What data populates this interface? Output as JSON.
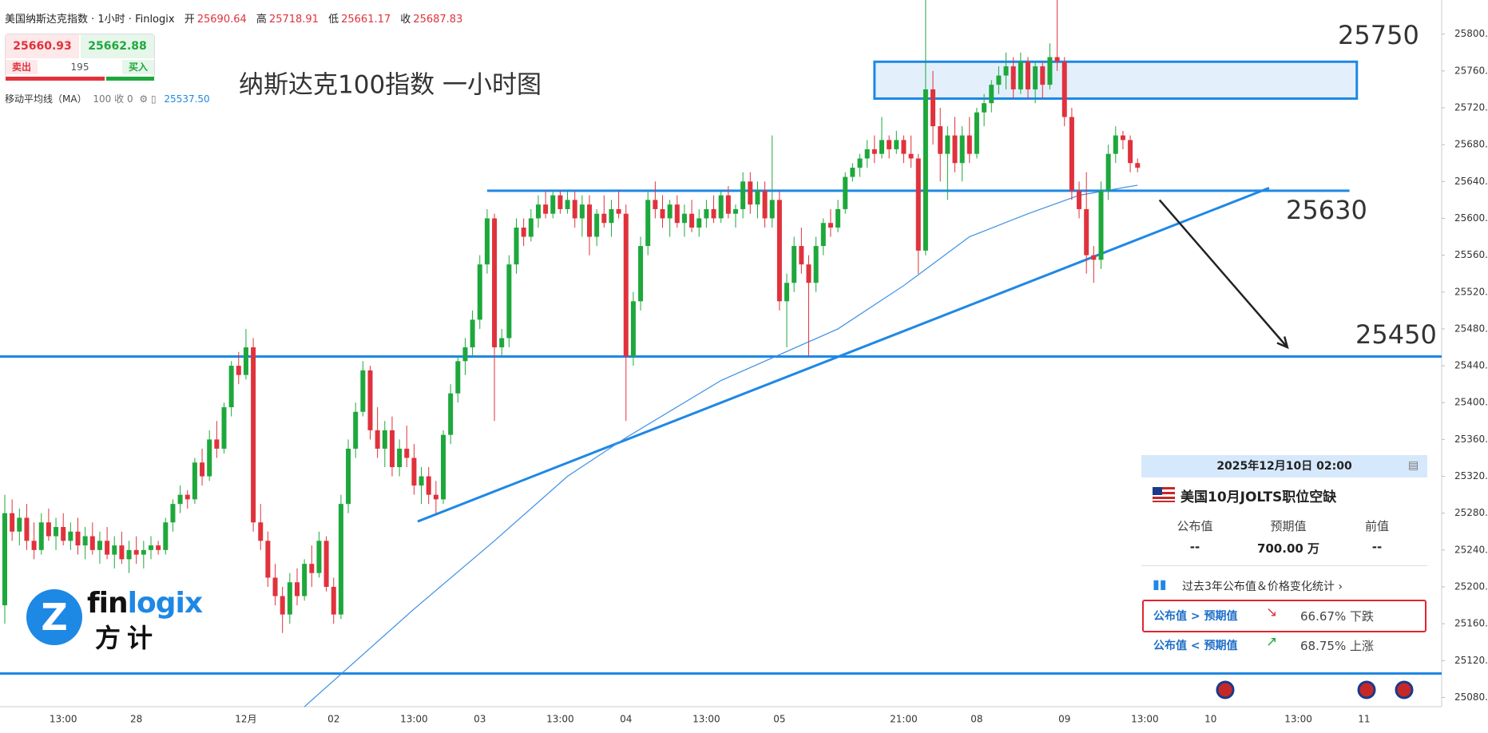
{
  "header": {
    "symbol": "美国纳斯达克指数 · 1小时 · Finlogix",
    "ohlc": [
      {
        "label": "开",
        "value": "25690.64"
      },
      {
        "label": "高",
        "value": "25718.91"
      },
      {
        "label": "低",
        "value": "25661.17"
      },
      {
        "label": "收",
        "value": "25687.83"
      }
    ]
  },
  "quote": {
    "sell": "25660.93",
    "sell_label": "卖出",
    "buy": "25662.88",
    "buy_label": "买入",
    "spread": "195"
  },
  "indicator": {
    "name": "移动平均线（MA）",
    "params": "100 收 0",
    "value": "25537.50"
  },
  "logo": {
    "brand": [
      "fin",
      "logix"
    ],
    "brand_cn": "方计"
  },
  "event": {
    "datetime": "2025年12月10日 02:00",
    "title": "美国10月JOLTS职位空缺",
    "columns": [
      "公布值",
      "预期值",
      "前值"
    ],
    "values": [
      "--",
      "700.00 万",
      "--"
    ],
    "history_link": "过去3年公布值＆价格变化统计",
    "rows": [
      {
        "condition": "公布值 > 预期值",
        "result": "66.67% 下跌"
      },
      {
        "condition": "公布值 < 预期值",
        "result": "68.75% 上涨"
      }
    ]
  },
  "chart_data": {
    "type": "candlestick",
    "title": "纳斯达克100指数 一小时图",
    "up_color": "#1ea83c",
    "down_color": "#e0323c",
    "categories": [
      null,
      null,
      null,
      null,
      null,
      null,
      null,
      null,
      "13:00",
      null,
      null,
      null,
      null,
      null,
      null,
      null,
      null,
      null,
      "28",
      null,
      null,
      null,
      null,
      null,
      null,
      null,
      null,
      null,
      null,
      null,
      null,
      null,
      null,
      "12月",
      null,
      null,
      null,
      null,
      null,
      null,
      null,
      null,
      null,
      null,
      null,
      "02",
      null,
      null,
      null,
      null,
      null,
      null,
      null,
      null,
      null,
      null,
      "13:00",
      null,
      null,
      null,
      null,
      null,
      null,
      null,
      null,
      "03",
      null,
      null,
      null,
      null,
      null,
      null,
      null,
      null,
      null,
      null,
      "13:00",
      null,
      null,
      null,
      null,
      null,
      null,
      null,
      null,
      "04",
      null,
      null,
      null,
      null,
      null,
      null,
      null,
      null,
      null,
      null,
      "13:00",
      null,
      null,
      null,
      null,
      null,
      null,
      null,
      null,
      null,
      "05",
      null,
      null,
      null,
      null,
      null,
      null,
      null,
      null,
      null,
      null,
      null,
      null,
      null,
      null,
      null,
      null,
      "21:00",
      null,
      null,
      null,
      null,
      null,
      null,
      null,
      null,
      null,
      "08",
      null,
      null,
      null,
      null,
      null,
      null,
      null,
      null,
      null,
      null,
      null,
      "09",
      null,
      null,
      null,
      null,
      null,
      null,
      null,
      null,
      null,
      null,
      "13:00",
      null,
      null,
      null,
      null,
      null,
      null,
      null,
      null,
      "10",
      null,
      null,
      null,
      null,
      null,
      null,
      null,
      null,
      null,
      null,
      null,
      "13:00",
      null,
      null,
      null,
      null,
      null,
      null,
      null,
      null,
      "11"
    ],
    "values": [
      [
        25180,
        25300,
        25160,
        25280
      ],
      [
        25280,
        25295,
        25250,
        25260
      ],
      [
        25260,
        25285,
        25245,
        25275
      ],
      [
        25275,
        25290,
        25240,
        25250
      ],
      [
        25250,
        25270,
        25230,
        25240
      ],
      [
        25240,
        25280,
        25235,
        25270
      ],
      [
        25270,
        25285,
        25250,
        25255
      ],
      [
        25255,
        25275,
        25240,
        25265
      ],
      [
        25265,
        25280,
        25245,
        25250
      ],
      [
        25250,
        25270,
        25240,
        25260
      ],
      [
        25260,
        25275,
        25235,
        25245
      ],
      [
        25245,
        25265,
        25230,
        25255
      ],
      [
        25255,
        25270,
        25235,
        25240
      ],
      [
        25240,
        25260,
        25225,
        25250
      ],
      [
        25250,
        25265,
        25230,
        25235
      ],
      [
        25235,
        25255,
        25220,
        25245
      ],
      [
        25245,
        25260,
        25225,
        25230
      ],
      [
        25230,
        25250,
        25215,
        25240
      ],
      [
        25240,
        25255,
        25225,
        25235
      ],
      [
        25235,
        25250,
        25220,
        25240
      ],
      [
        25240,
        25255,
        25230,
        25245
      ],
      [
        25245,
        25250,
        25235,
        25240
      ],
      [
        25240,
        25275,
        25235,
        25270
      ],
      [
        25270,
        25295,
        25260,
        25290
      ],
      [
        25290,
        25310,
        25280,
        25300
      ],
      [
        25300,
        25305,
        25285,
        25295
      ],
      [
        25295,
        25340,
        25290,
        25335
      ],
      [
        25335,
        25350,
        25310,
        25320
      ],
      [
        25320,
        25370,
        25315,
        25360
      ],
      [
        25360,
        25380,
        25340,
        25350
      ],
      [
        25350,
        25400,
        25345,
        25395
      ],
      [
        25395,
        25445,
        25385,
        25440
      ],
      [
        25440,
        25455,
        25420,
        25430
      ],
      [
        25430,
        25480,
        25425,
        25460
      ],
      [
        25460,
        25470,
        25260,
        25270
      ],
      [
        25270,
        25290,
        25240,
        25250
      ],
      [
        25250,
        25260,
        25200,
        25210
      ],
      [
        25210,
        25225,
        25180,
        25190
      ],
      [
        25190,
        25200,
        25150,
        25170
      ],
      [
        25170,
        25215,
        25160,
        25205
      ],
      [
        25205,
        25220,
        25180,
        25190
      ],
      [
        25190,
        25230,
        25185,
        25225
      ],
      [
        25225,
        25245,
        25200,
        25215
      ],
      [
        25215,
        25260,
        25210,
        25250
      ],
      [
        25250,
        25255,
        25195,
        25200
      ],
      [
        25200,
        25210,
        25160,
        25170
      ],
      [
        25170,
        25300,
        25165,
        25290
      ],
      [
        25290,
        25360,
        25280,
        25350
      ],
      [
        25350,
        25400,
        25340,
        25390
      ],
      [
        25390,
        25445,
        25385,
        25435
      ],
      [
        25435,
        25440,
        25360,
        25370
      ],
      [
        25370,
        25395,
        25340,
        25350
      ],
      [
        25350,
        25380,
        25330,
        25370
      ],
      [
        25370,
        25385,
        25320,
        25330
      ],
      [
        25330,
        25360,
        25320,
        25350
      ],
      [
        25350,
        25375,
        25330,
        25340
      ],
      [
        25340,
        25355,
        25300,
        25310
      ],
      [
        25310,
        25330,
        25290,
        25320
      ],
      [
        25320,
        25330,
        25290,
        25300
      ],
      [
        25300,
        25315,
        25280,
        25295
      ],
      [
        25295,
        25370,
        25290,
        25365
      ],
      [
        25365,
        25420,
        25355,
        25410
      ],
      [
        25410,
        25450,
        25400,
        25445
      ],
      [
        25445,
        25470,
        25430,
        25460
      ],
      [
        25460,
        25500,
        25450,
        25490
      ],
      [
        25490,
        25560,
        25480,
        25550
      ],
      [
        25550,
        25610,
        25540,
        25600
      ],
      [
        25600,
        25605,
        25380,
        25460
      ],
      [
        25460,
        25480,
        25450,
        25470
      ],
      [
        25470,
        25560,
        25460,
        25550
      ],
      [
        25550,
        25600,
        25540,
        25590
      ],
      [
        25590,
        25600,
        25570,
        25580
      ],
      [
        25580,
        25610,
        25575,
        25600
      ],
      [
        25600,
        25625,
        25590,
        25615
      ],
      [
        25615,
        25630,
        25600,
        25605
      ],
      [
        25605,
        25630,
        25600,
        25625
      ],
      [
        25625,
        25630,
        25605,
        25610
      ],
      [
        25610,
        25630,
        25605,
        25620
      ],
      [
        25620,
        25630,
        25590,
        25600
      ],
      [
        25600,
        25625,
        25580,
        25615
      ],
      [
        25615,
        25625,
        25560,
        25580
      ],
      [
        25580,
        25610,
        25570,
        25605
      ],
      [
        25605,
        25625,
        25590,
        25595
      ],
      [
        25595,
        25620,
        25580,
        25610
      ],
      [
        25610,
        25630,
        25600,
        25605
      ],
      [
        25605,
        25615,
        25380,
        25450
      ],
      [
        25450,
        25520,
        25440,
        25510
      ],
      [
        25510,
        25580,
        25500,
        25570
      ],
      [
        25570,
        25630,
        25560,
        25620
      ],
      [
        25620,
        25640,
        25600,
        25610
      ],
      [
        25610,
        25625,
        25590,
        25600
      ],
      [
        25600,
        25620,
        25580,
        25615
      ],
      [
        25615,
        25625,
        25590,
        25595
      ],
      [
        25595,
        25615,
        25580,
        25605
      ],
      [
        25605,
        25620,
        25585,
        25590
      ],
      [
        25590,
        25610,
        25580,
        25600
      ],
      [
        25600,
        25620,
        25590,
        25610
      ],
      [
        25610,
        25625,
        25595,
        25600
      ],
      [
        25600,
        25630,
        25595,
        25625
      ],
      [
        25625,
        25635,
        25600,
        25605
      ],
      [
        25605,
        25615,
        25590,
        25610
      ],
      [
        25610,
        25650,
        25600,
        25640
      ],
      [
        25640,
        25650,
        25605,
        25615
      ],
      [
        25615,
        25640,
        25600,
        25630
      ],
      [
        25630,
        25640,
        25590,
        25600
      ],
      [
        25600,
        25690,
        25590,
        25620
      ],
      [
        25620,
        25630,
        25500,
        25510
      ],
      [
        25510,
        25540,
        25460,
        25530
      ],
      [
        25530,
        25580,
        25520,
        25570
      ],
      [
        25570,
        25590,
        25540,
        25550
      ],
      [
        25550,
        25560,
        25450,
        25530
      ],
      [
        25530,
        25580,
        25520,
        25570
      ],
      [
        25570,
        25600,
        25560,
        25595
      ],
      [
        25595,
        25610,
        25580,
        25590
      ],
      [
        25590,
        25620,
        25585,
        25610
      ],
      [
        25610,
        25650,
        25605,
        25645
      ],
      [
        25645,
        25660,
        25640,
        25655
      ],
      [
        25655,
        25670,
        25645,
        25665
      ],
      [
        25665,
        25685,
        25655,
        25675
      ],
      [
        25675,
        25690,
        25660,
        25670
      ],
      [
        25670,
        25710,
        25665,
        25685
      ],
      [
        25685,
        25690,
        25665,
        25675
      ],
      [
        25675,
        25695,
        25670,
        25685
      ],
      [
        25685,
        25690,
        25660,
        25670
      ],
      [
        25670,
        25690,
        25655,
        25665
      ],
      [
        25665,
        25670,
        25540,
        25565
      ],
      [
        25565,
        25840,
        25560,
        25740
      ],
      [
        25740,
        25760,
        25680,
        25700
      ],
      [
        25700,
        25720,
        25640,
        25670
      ],
      [
        25670,
        25700,
        25620,
        25690
      ],
      [
        25690,
        25710,
        25650,
        25660
      ],
      [
        25660,
        25700,
        25640,
        25690
      ],
      [
        25690,
        25710,
        25660,
        25670
      ],
      [
        25670,
        25720,
        25665,
        25715
      ],
      [
        25715,
        25735,
        25700,
        25725
      ],
      [
        25725,
        25750,
        25715,
        25745
      ],
      [
        25745,
        25765,
        25735,
        25755
      ],
      [
        25755,
        25780,
        25740,
        25765
      ],
      [
        25765,
        25775,
        25730,
        25740
      ],
      [
        25740,
        25780,
        25735,
        25770
      ],
      [
        25770,
        25775,
        25730,
        25740
      ],
      [
        25740,
        25770,
        25725,
        25765
      ],
      [
        25765,
        25770,
        25730,
        25745
      ],
      [
        25745,
        25790,
        25740,
        25775
      ],
      [
        25775,
        25840,
        25760,
        25770
      ],
      [
        25770,
        25775,
        25700,
        25710
      ],
      [
        25710,
        25720,
        25620,
        25630
      ],
      [
        25630,
        25640,
        25600,
        25610
      ],
      [
        25610,
        25650,
        25540,
        25560
      ],
      [
        25560,
        25570,
        25530,
        25555
      ],
      [
        25555,
        25640,
        25545,
        25630
      ],
      [
        25630,
        25680,
        25620,
        25670
      ],
      [
        25670,
        25700,
        25660,
        25690
      ],
      [
        25690,
        25695,
        25675,
        25685
      ],
      [
        25685,
        25690,
        25650,
        25660
      ],
      [
        25660,
        25665,
        25650,
        25655
      ],
      null,
      null,
      null,
      null,
      null,
      null,
      null,
      null,
      null,
      null,
      null,
      null,
      null,
      null,
      null,
      null,
      null,
      null,
      null,
      null,
      null,
      null,
      null,
      null,
      null,
      null,
      null,
      null,
      null,
      null,
      null
    ],
    "ma": {
      "color": "#3d8fe6",
      "x": [
        41,
        56,
        67,
        77,
        85,
        98,
        114,
        123,
        132,
        140,
        147,
        155
      ],
      "values": [
        25070,
        25176,
        25250,
        25320,
        25362,
        25424,
        25480,
        25527,
        25580,
        25605,
        25625,
        25636
      ]
    },
    "ylim": [
      25070,
      25837
    ],
    "yticks": [
      {
        "value": 25080,
        "label": "25080.00"
      },
      {
        "value": 25120,
        "label": "25120.00"
      },
      {
        "value": 25160,
        "label": "25160.00"
      },
      {
        "value": 25200,
        "label": "25200.00"
      },
      {
        "value": 25240,
        "label": "25240.00"
      },
      {
        "value": 25280,
        "label": "25280.00"
      },
      {
        "value": 25320,
        "label": "25320.00"
      },
      {
        "value": 25360,
        "label": "25360.00"
      },
      {
        "value": 25400,
        "label": "25400.00"
      },
      {
        "value": 25440,
        "label": "25440.00"
      },
      {
        "value": 25480,
        "label": "25480.00"
      },
      {
        "value": 25520,
        "label": "25520.00"
      },
      {
        "value": 25560,
        "label": "25560.00"
      },
      {
        "value": 25600,
        "label": "25600.00"
      },
      {
        "value": 25640,
        "label": "25640.00"
      },
      {
        "value": 25680,
        "label": "25680.00"
      },
      {
        "value": 25720,
        "label": "25720.00"
      },
      {
        "value": 25760,
        "label": "25760.00"
      },
      {
        "value": 25800,
        "label": "25800.00"
      }
    ],
    "zone": {
      "x": [
        119,
        185
      ],
      "y": [
        25730,
        25770
      ]
    },
    "levels": [
      {
        "y": 25630,
        "x": [
          66,
          184
        ]
      },
      {
        "y": 25450
      },
      {
        "y": 25106
      }
    ],
    "trendline": {
      "x": [
        56.5,
        173
      ],
      "y": [
        25271,
        25633
      ]
    },
    "arrow": {
      "x": [
        158,
        175.5
      ],
      "y": [
        25620,
        25460
      ]
    },
    "annotations": [
      "25750",
      "25630",
      "25450"
    ],
    "drawing_color": "#1e88e5"
  }
}
